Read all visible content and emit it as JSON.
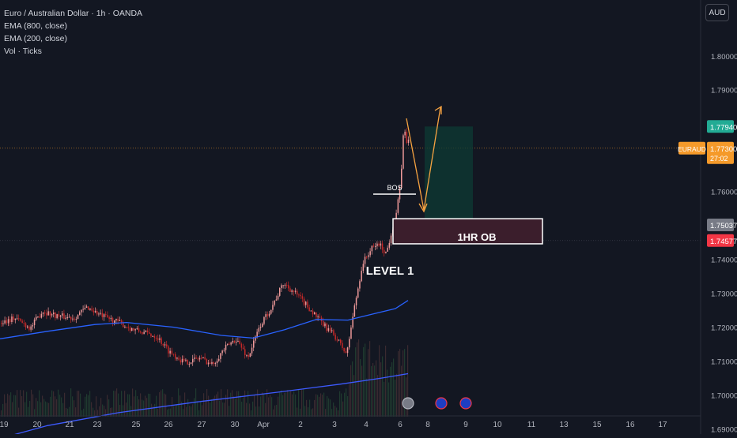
{
  "legend": {
    "symbol": "Euro / Australian Dollar · 1h · OANDA",
    "ema1": "EMA (800, close)",
    "ema2": "EMA (200, close)",
    "vol": "Vol · Ticks"
  },
  "currency_button": "AUD",
  "colors": {
    "background": "#131722",
    "up": "#ef9a9a",
    "down": "#c62828",
    "ema800": "#3d5afe",
    "ema200": "#2962ff",
    "target_zone": "#0d3b34",
    "ob_zone": "#3b1e2c",
    "arrow": "#f7a341",
    "price_tag": "#f59a2a",
    "high_tag": "#22ab94",
    "low_tag": "#f23645"
  },
  "chart_data": {
    "type": "line",
    "title": "Euro / Australian Dollar · 1h · OANDA",
    "y_axis": {
      "ticks": [
        "1.80000",
        "1.79000",
        "1.76000",
        "1.74000",
        "1.73000",
        "1.72000",
        "1.71000",
        "1.70000",
        "1.69000"
      ],
      "range": [
        1.6887,
        1.8167
      ]
    },
    "x_axis": {
      "ticks": [
        "19",
        "20",
        "21",
        "23",
        "25",
        "26",
        "27",
        "30",
        "Apr",
        "2",
        "3",
        "4",
        "6",
        "8",
        "9",
        "10",
        "11",
        "13",
        "15",
        "16",
        "17"
      ]
    },
    "price_labels": [
      {
        "symbol": "EURAUD",
        "price": "1.77300",
        "countdown": "27:02"
      },
      {
        "price": "1.77940"
      },
      {
        "price": "1.75037"
      },
      {
        "price": "1.74577"
      }
    ],
    "series": [
      {
        "name": "EMA (800, close)",
        "points": [
          [
            0,
            1.6874
          ],
          [
            60,
            1.6912
          ],
          [
            150,
            1.695
          ],
          [
            250,
            1.6982
          ],
          [
            350,
            1.701
          ],
          [
            430,
            1.7034
          ],
          [
            480,
            1.7051
          ],
          [
            516,
            1.7065
          ]
        ]
      },
      {
        "name": "EMA (200, close)",
        "points": [
          [
            0,
            1.7168
          ],
          [
            60,
            1.719
          ],
          [
            120,
            1.721
          ],
          [
            160,
            1.7216
          ],
          [
            220,
            1.7202
          ],
          [
            280,
            1.7178
          ],
          [
            320,
            1.717
          ],
          [
            360,
            1.7195
          ],
          [
            400,
            1.7225
          ],
          [
            440,
            1.7223
          ],
          [
            470,
            1.724
          ],
          [
            500,
            1.7257
          ],
          [
            516,
            1.7281
          ]
        ]
      },
      {
        "name": "Price",
        "points": [
          [
            0,
            1.7215
          ],
          [
            20,
            1.723
          ],
          [
            40,
            1.72
          ],
          [
            55,
            1.725
          ],
          [
            75,
            1.7235
          ],
          [
            95,
            1.723
          ],
          [
            112,
            1.7262
          ],
          [
            130,
            1.7235
          ],
          [
            150,
            1.7218
          ],
          [
            170,
            1.7195
          ],
          [
            185,
            1.7185
          ],
          [
            200,
            1.7175
          ],
          [
            215,
            1.7132
          ],
          [
            235,
            1.7098
          ],
          [
            255,
            1.7112
          ],
          [
            270,
            1.7092
          ],
          [
            285,
            1.7138
          ],
          [
            300,
            1.7168
          ],
          [
            315,
            1.7112
          ],
          [
            330,
            1.7205
          ],
          [
            345,
            1.7262
          ],
          [
            360,
            1.7332
          ],
          [
            375,
            1.7302
          ],
          [
            390,
            1.7265
          ],
          [
            410,
            1.721
          ],
          [
            425,
            1.7176
          ],
          [
            440,
            1.7122
          ],
          [
            448,
            1.724
          ],
          [
            460,
            1.739
          ],
          [
            470,
            1.743
          ],
          [
            480,
            1.745
          ],
          [
            490,
            1.742
          ],
          [
            497,
            1.7488
          ],
          [
            502,
            1.753
          ],
          [
            508,
            1.762
          ],
          [
            511,
            1.776
          ],
          [
            514,
            1.778
          ],
          [
            516,
            1.775
          ]
        ]
      }
    ],
    "annotations": {
      "bos": "BOS",
      "level": "LEVEL 1",
      "order_block": "1HR OB",
      "ob_zone": [
        1.7448,
        1.7522
      ],
      "target_zone": [
        1.7504,
        1.7794
      ]
    }
  }
}
